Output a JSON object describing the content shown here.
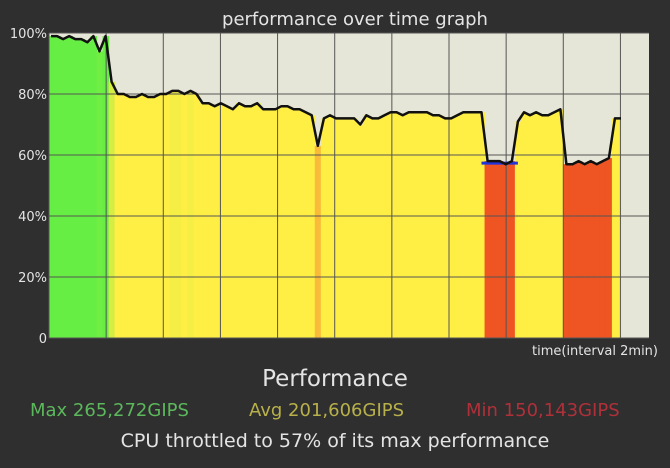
{
  "chart_data": {
    "type": "area",
    "title": "performance over time graph",
    "xlabel": "time(interval 2min)",
    "ylabel": "",
    "ylim": [
      0,
      100
    ],
    "yticks": [
      "100%",
      "80%",
      "60%",
      "40%",
      "20%",
      "0"
    ],
    "ytick_values": [
      100,
      80,
      60,
      40,
      20,
      0
    ],
    "x_interval_minutes": 2,
    "x_intervals_shown": 10,
    "grid": true,
    "series": [
      {
        "values": [
          99,
          99,
          98,
          99,
          98,
          98,
          97,
          99,
          94,
          99,
          84,
          80,
          80,
          79,
          79,
          80,
          79,
          79,
          80,
          80,
          81,
          81,
          80,
          81,
          80,
          77,
          77,
          76,
          77,
          76,
          75,
          77,
          76,
          76,
          77,
          75,
          75,
          75,
          76,
          76,
          75,
          75,
          74,
          73,
          63,
          72,
          73,
          72,
          72,
          72,
          72,
          70,
          73,
          72,
          72,
          73,
          74,
          74,
          73,
          74,
          74,
          74,
          74,
          73,
          73,
          72,
          72,
          73,
          74,
          74,
          74,
          74,
          58,
          58,
          58,
          57,
          58,
          71,
          74,
          73,
          74,
          73,
          73,
          74,
          75,
          57,
          57,
          58,
          57,
          58,
          57,
          58,
          59,
          72,
          72
        ]
      }
    ],
    "colors": {
      "background": "#2f2f2f",
      "plot_background": "#e6e6d8",
      "grid": "#555555",
      "line": "#111111",
      "throttle_marker": "#2233dd",
      "high": "#66ee44",
      "mid": "#ffee44",
      "low": "#ee5522"
    }
  },
  "stats": {
    "heading": "Performance",
    "max": "Max 265,272GIPS",
    "avg": "Avg 201,606GIPS",
    "min": "Min 150,143GIPS",
    "note": "CPU throttled to 57% of its max performance"
  }
}
